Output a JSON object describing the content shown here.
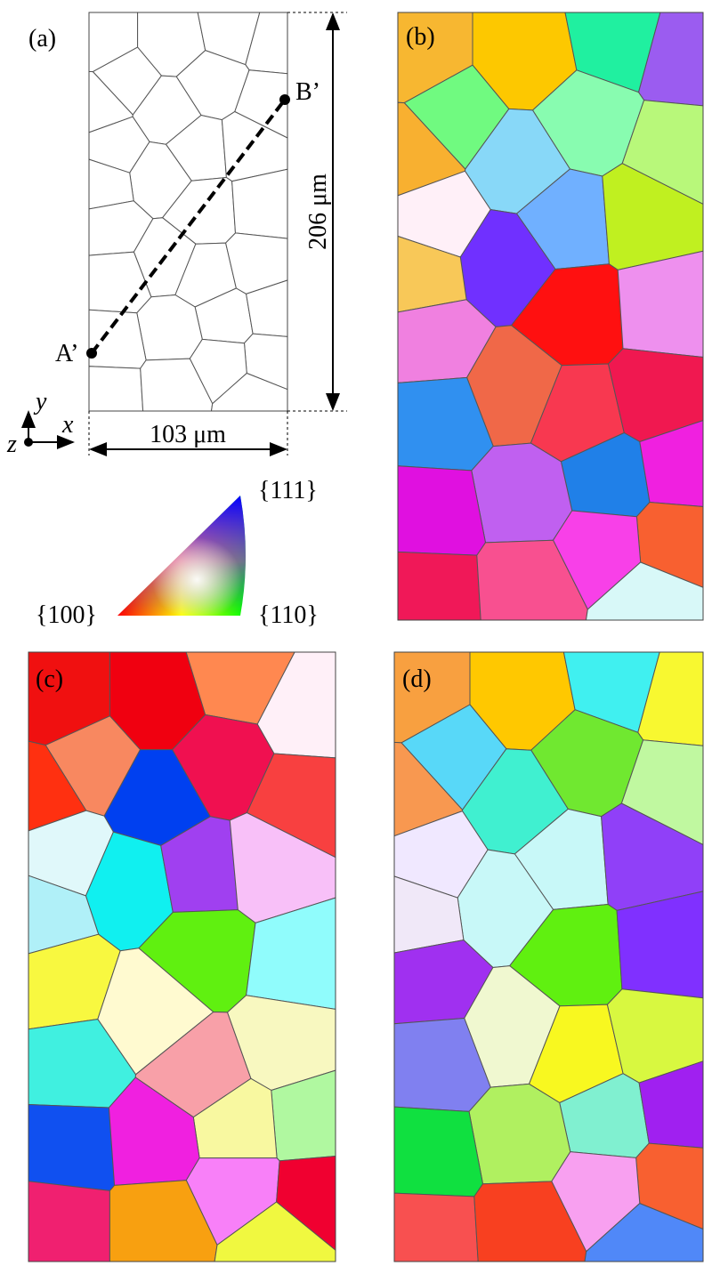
{
  "panels": {
    "a": {
      "label": "(a)",
      "point_a": "A’",
      "point_b": "B’",
      "height_label": "206 μm",
      "width_label": "103 μm",
      "axis_x": "x",
      "axis_y": "y",
      "axis_z": "z"
    },
    "b": {
      "label": "(b)"
    },
    "c": {
      "label": "(c)"
    },
    "d": {
      "label": "(d)"
    }
  },
  "legend": {
    "top": "{111}",
    "left": "{100}",
    "right": "{110}"
  }
}
